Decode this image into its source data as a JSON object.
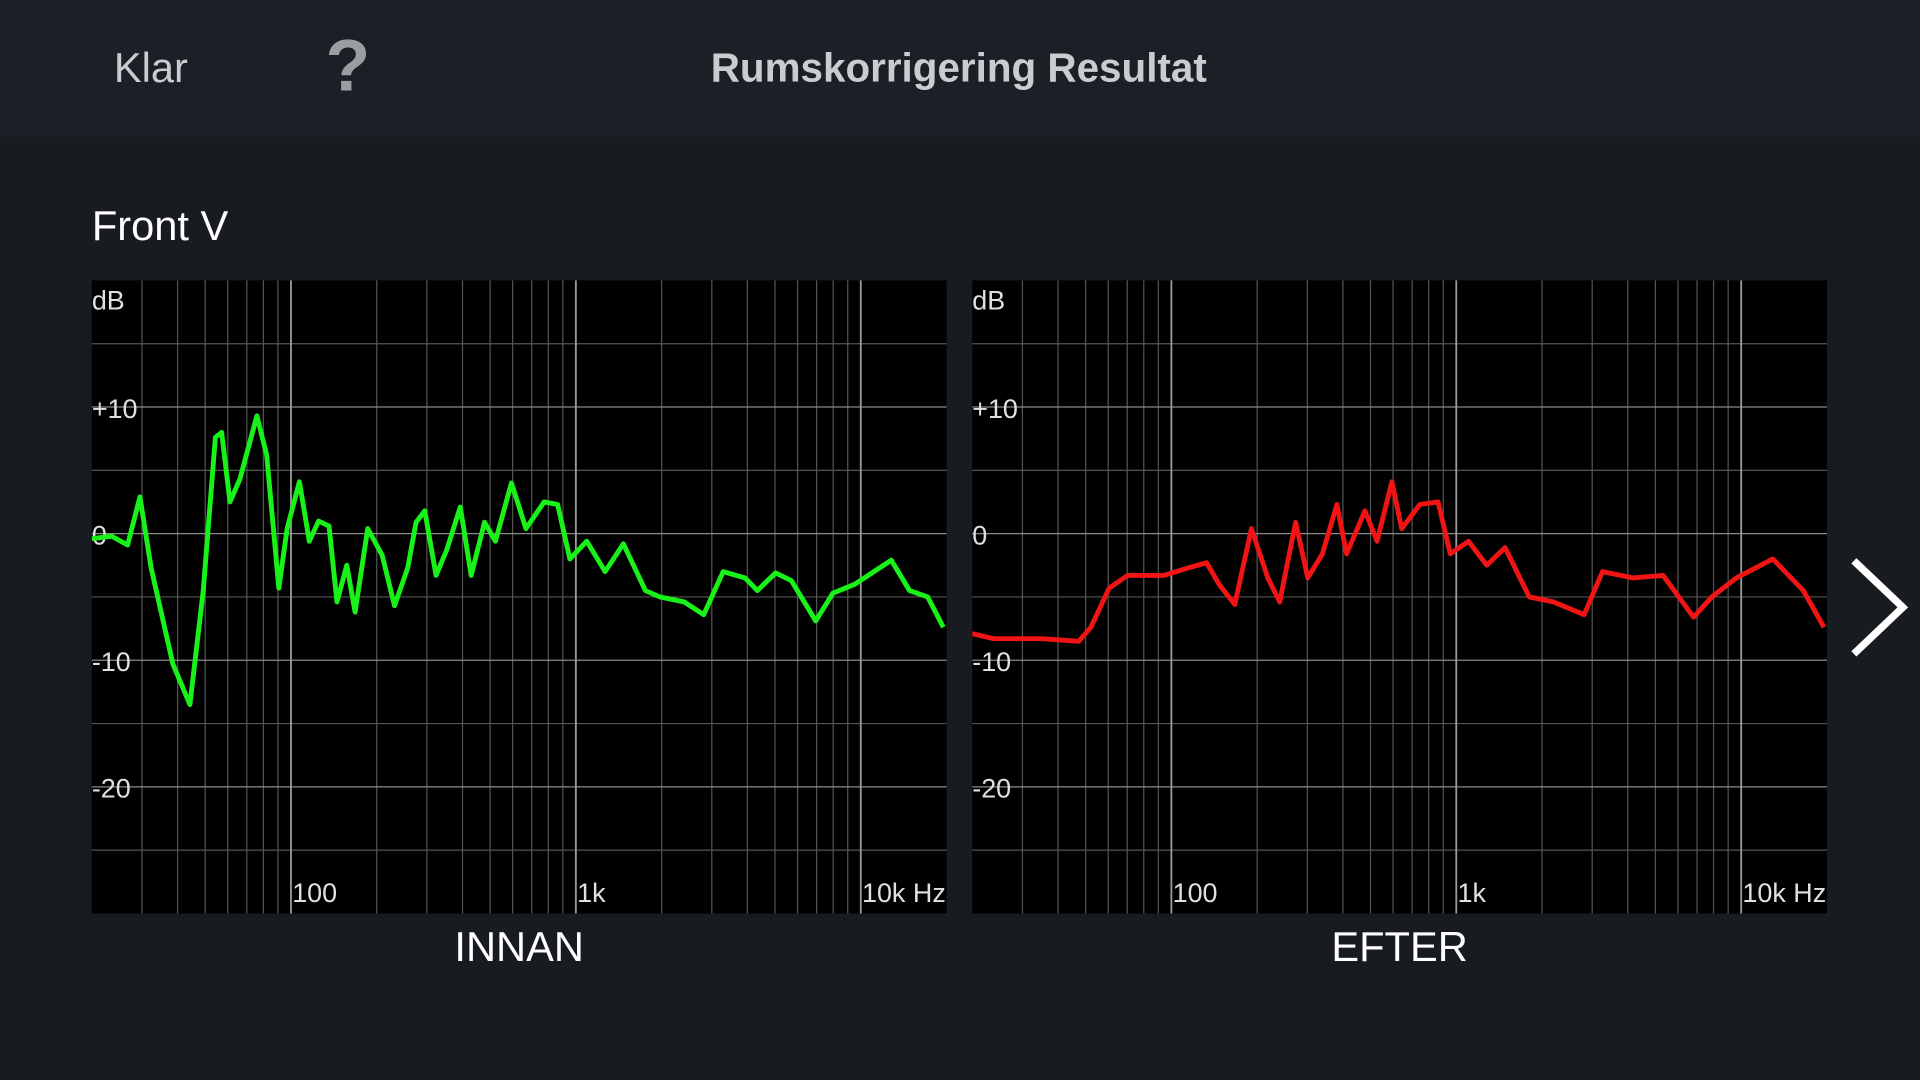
{
  "header": {
    "left_button": "Klar",
    "help": "?",
    "title": "Rumskorrigering Resultat"
  },
  "channel": "Front V",
  "chart_data": [
    {
      "type": "line",
      "title": "INNAN",
      "y_label": "dB",
      "color": "#19f219",
      "xscale": "log",
      "grid": true,
      "xlim": [
        20,
        20000
      ],
      "ylim": [
        -30,
        20
      ],
      "xticks": [
        100,
        {
          "value": 1000,
          "label": "1k"
        },
        {
          "value": 10000,
          "label": "10k Hz"
        }
      ],
      "xminor": [
        30,
        40,
        50,
        60,
        70,
        80,
        90,
        200,
        300,
        400,
        500,
        600,
        700,
        800,
        900,
        2000,
        3000,
        4000,
        5000,
        6000,
        7000,
        8000,
        9000
      ],
      "yticks": [
        {
          "value": 10,
          "label": "+10"
        },
        0,
        -10,
        -20
      ],
      "yminor": [
        15,
        5,
        -5,
        -15,
        -25
      ],
      "x": [
        20,
        23.5,
        26.7,
        29.5,
        32.3,
        38.5,
        44.2,
        49.2,
        54.3,
        57.1,
        61.1,
        66.2,
        75.9,
        82.2,
        90.6,
        97,
        107,
        116,
        125,
        136,
        145,
        157,
        168,
        186,
        209,
        231,
        257,
        275,
        295,
        323,
        352,
        393,
        429,
        478,
        522,
        594,
        668,
        774,
        863,
        953,
        1092,
        1267,
        1468,
        1754,
        1972,
        2401,
        2810,
        3289,
        3926,
        4335,
        5023,
        5703,
        6950,
        7980,
        9525,
        12800,
        14830,
        17180,
        19500
      ],
      "values": [
        -0.4,
        -0.2,
        -0.9,
        2.9,
        -2.7,
        -10.3,
        -13.5,
        -4.5,
        7.6,
        8.0,
        2.5,
        4.3,
        9.3,
        6.2,
        -4.3,
        0.4,
        4.1,
        -0.6,
        1.0,
        0.6,
        -5.4,
        -2.5,
        -6.2,
        0.4,
        -1.7,
        -5.7,
        -2.7,
        0.9,
        1.8,
        -3.3,
        -1.3,
        2.1,
        -3.3,
        0.9,
        -0.6,
        4.0,
        0.4,
        2.5,
        2.3,
        -2.0,
        -0.6,
        -3.0,
        -0.8,
        -4.5,
        -5.0,
        -5.4,
        -6.4,
        -3.0,
        -3.5,
        -4.5,
        -3.1,
        -3.7,
        -6.9,
        -4.7,
        -4.0,
        -2.1,
        -4.5,
        -5.0,
        -7.4
      ]
    },
    {
      "type": "line",
      "title": "EFTER",
      "y_label": "dB",
      "color": "#f01414",
      "xscale": "log",
      "grid": true,
      "xlim": [
        20,
        20000
      ],
      "ylim": [
        -30,
        20
      ],
      "xticks": [
        100,
        {
          "value": 1000,
          "label": "1k"
        },
        {
          "value": 10000,
          "label": "10k Hz"
        }
      ],
      "xminor": [
        30,
        40,
        50,
        60,
        70,
        80,
        90,
        200,
        300,
        400,
        500,
        600,
        700,
        800,
        900,
        2000,
        3000,
        4000,
        5000,
        6000,
        7000,
        8000,
        9000
      ],
      "yticks": [
        {
          "value": 10,
          "label": "+10"
        },
        0,
        -10,
        -20
      ],
      "yminor": [
        15,
        5,
        -5,
        -15,
        -25
      ],
      "x": [
        20,
        23.8,
        35.2,
        47.3,
        52.2,
        60.5,
        70.2,
        94.2,
        115,
        133,
        147,
        167,
        191,
        218,
        240,
        273,
        301,
        339,
        381,
        412,
        478,
        527,
        594,
        643,
        745,
        863,
        953,
        1104,
        1280,
        1483,
        1804,
        2198,
        2810,
        3259,
        4169,
        5321,
        6808,
        7889,
        9616,
        12910,
        16520,
        19540
      ],
      "values": [
        -7.9,
        -8.3,
        -8.3,
        -8.5,
        -7.4,
        -4.3,
        -3.3,
        -3.3,
        -2.7,
        -2.3,
        -4.0,
        -5.6,
        0.4,
        -3.5,
        -5.4,
        0.9,
        -3.5,
        -1.6,
        2.3,
        -1.6,
        1.8,
        -0.6,
        4.1,
        0.4,
        2.3,
        2.5,
        -1.6,
        -0.6,
        -2.5,
        -1.1,
        -5.0,
        -5.4,
        -6.4,
        -3.0,
        -3.5,
        -3.3,
        -6.6,
        -5.0,
        -3.5,
        -2.0,
        -4.5,
        -7.4
      ]
    }
  ]
}
